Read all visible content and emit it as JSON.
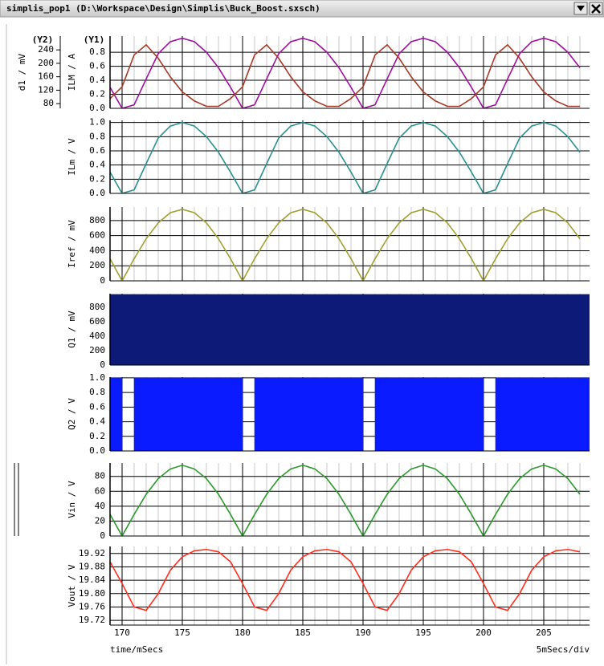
{
  "window": {
    "title": "simplis_pop1 (D:\\Workspace\\Design\\Simplis\\Buck_Boost.sxsch)"
  },
  "chart_data": [
    {
      "type": "line",
      "ylabel": "ILM / A",
      "y_axis_tag": "(Y1)",
      "y2label": "d1 / mV",
      "y2_axis_tag": "(Y2)",
      "x": [
        169,
        170,
        171,
        172,
        173,
        174,
        175,
        176,
        177,
        178,
        179,
        180,
        181,
        182,
        183,
        184,
        185,
        186,
        187,
        188,
        189,
        190,
        191,
        192,
        193,
        194,
        195,
        196,
        197,
        198,
        199,
        200,
        201,
        202,
        203,
        204,
        205,
        206,
        207,
        208
      ],
      "series": [
        {
          "color": "#a010a0",
          "values": [
            0.3,
            0,
            0.05,
            0.42,
            0.78,
            0.95,
            1,
            0.95,
            0.8,
            0.58,
            0.3,
            0,
            0.05,
            0.42,
            0.78,
            0.95,
            1,
            0.95,
            0.8,
            0.58,
            0.3,
            0,
            0.05,
            0.42,
            0.78,
            0.95,
            1,
            0.95,
            0.8,
            0.58,
            0.3,
            0,
            0.05,
            0.42,
            0.78,
            0.95,
            1,
            0.95,
            0.8,
            0.58
          ]
        },
        {
          "color": "#a83a2a",
          "axis": "y2",
          "values": [
            95,
            130,
            225,
            255,
            215,
            160,
            115,
            88,
            72,
            72,
            95,
            130,
            225,
            255,
            215,
            160,
            115,
            88,
            72,
            72,
            95,
            130,
            225,
            255,
            215,
            160,
            115,
            88,
            72,
            72,
            95,
            130,
            225,
            255,
            215,
            160,
            115,
            88,
            72,
            72
          ]
        }
      ],
      "xlim": [
        169,
        208.8
      ],
      "xticks": [
        170,
        175,
        180,
        185,
        190,
        195,
        200,
        205
      ],
      "ylim": [
        0,
        1.03
      ],
      "yticks": [
        {
          "value": 0,
          "label": "0.0"
        },
        0.2,
        0.4,
        0.6,
        0.8
      ],
      "y2lim": [
        66,
        281
      ],
      "y2ticks": [
        80,
        120,
        160,
        200,
        240
      ],
      "grid": true,
      "xtick_labels": false
    },
    {
      "type": "line",
      "ylabel": "ILm / V",
      "color": "#2a9090",
      "x": [
        169,
        170,
        171,
        172,
        173,
        174,
        175,
        176,
        177,
        178,
        179,
        180,
        181,
        182,
        183,
        184,
        185,
        186,
        187,
        188,
        189,
        190,
        191,
        192,
        193,
        194,
        195,
        196,
        197,
        198,
        199,
        200,
        201,
        202,
        203,
        204,
        205,
        206,
        207,
        208
      ],
      "values": [
        0.3,
        0,
        0.05,
        0.42,
        0.78,
        0.95,
        1,
        0.95,
        0.8,
        0.58,
        0.3,
        0,
        0.05,
        0.42,
        0.78,
        0.95,
        1,
        0.95,
        0.8,
        0.58,
        0.3,
        0,
        0.05,
        0.42,
        0.78,
        0.95,
        1,
        0.95,
        0.8,
        0.58,
        0.3,
        0,
        0.05,
        0.42,
        0.78,
        0.95,
        1,
        0.95,
        0.8,
        0.58
      ],
      "xlim": [
        169,
        208.8
      ],
      "xticks": [
        170,
        175,
        180,
        185,
        190,
        195,
        200,
        205
      ],
      "ylim": [
        0,
        1.03
      ],
      "yticks": [
        {
          "value": 0,
          "label": "0.0"
        },
        0.2,
        0.4,
        0.6,
        0.8,
        {
          "value": 1,
          "label": "1.0"
        }
      ],
      "grid": true,
      "xtick_labels": false
    },
    {
      "type": "line",
      "ylabel": "Iref / mV",
      "color": "#a0a030",
      "x": [
        169,
        170,
        171,
        172,
        173,
        174,
        175,
        176,
        177,
        178,
        179,
        180,
        181,
        182,
        183,
        184,
        185,
        186,
        187,
        188,
        189,
        190,
        191,
        192,
        193,
        194,
        195,
        196,
        197,
        198,
        199,
        200,
        201,
        202,
        203,
        204,
        205,
        206,
        207,
        208
      ],
      "values": [
        294,
        0,
        294,
        559,
        769,
        904,
        950,
        904,
        769,
        559,
        294,
        0,
        294,
        559,
        769,
        904,
        950,
        904,
        769,
        559,
        294,
        0,
        294,
        559,
        769,
        904,
        950,
        904,
        769,
        559,
        294,
        0,
        294,
        559,
        769,
        904,
        950,
        904,
        769,
        559
      ],
      "xlim": [
        169,
        208.8
      ],
      "xticks": [
        170,
        175,
        180,
        185,
        190,
        195,
        200,
        205
      ],
      "ylim": [
        0,
        980
      ],
      "yticks": [
        0,
        200,
        400,
        600,
        800
      ],
      "grid": true,
      "xtick_labels": false
    },
    {
      "type": "area",
      "ylabel": "Q1 / mV",
      "color": "#0e1a78",
      "x": [
        169,
        208.8
      ],
      "values": [
        980,
        980
      ],
      "xlim": [
        169,
        208.8
      ],
      "xticks": [
        170,
        175,
        180,
        185,
        190,
        195,
        200,
        205
      ],
      "ylim": [
        0,
        990
      ],
      "yticks": [
        0,
        200,
        400,
        600,
        800
      ],
      "grid": true,
      "xtick_labels": false
    },
    {
      "type": "area",
      "ylabel": "Q2 / V",
      "color": "#0a1cff",
      "x": [
        169,
        170,
        170,
        171,
        171,
        180,
        180,
        181,
        181,
        190,
        190,
        191,
        191,
        200,
        200,
        201,
        201,
        208.8
      ],
      "values": [
        1,
        1,
        0,
        0,
        1,
        1,
        0,
        0,
        1,
        1,
        0,
        0,
        1,
        1,
        0,
        0,
        1,
        1
      ],
      "xlim": [
        169,
        208.8
      ],
      "xticks": [
        170,
        175,
        180,
        185,
        190,
        195,
        200,
        205
      ],
      "ylim": [
        0,
        1.01
      ],
      "yticks": [
        {
          "value": 0,
          "label": "0.0"
        },
        0.2,
        0.4,
        0.6,
        0.8,
        {
          "value": 1,
          "label": "1.0"
        }
      ],
      "grid": true,
      "xtick_labels": false
    },
    {
      "type": "line",
      "ylabel": "Vin / V",
      "color": "#2e9a2e",
      "x": [
        169,
        170,
        171,
        172,
        173,
        174,
        175,
        176,
        177,
        178,
        179,
        180,
        181,
        182,
        183,
        184,
        185,
        186,
        187,
        188,
        189,
        190,
        191,
        192,
        193,
        194,
        195,
        196,
        197,
        198,
        199,
        200,
        201,
        202,
        203,
        204,
        205,
        206,
        207,
        208
      ],
      "values": [
        29,
        0,
        29,
        56,
        77,
        90,
        95,
        90,
        77,
        56,
        29,
        0,
        29,
        56,
        77,
        90,
        95,
        90,
        77,
        56,
        29,
        0,
        29,
        56,
        77,
        90,
        95,
        90,
        77,
        56,
        29,
        0,
        29,
        56,
        77,
        90,
        95,
        90,
        77,
        56
      ],
      "xlim": [
        169,
        208.8
      ],
      "xticks": [
        170,
        175,
        180,
        185,
        190,
        195,
        200,
        205
      ],
      "ylim": [
        0,
        98
      ],
      "yticks": [
        0,
        20,
        40,
        60,
        80
      ],
      "grid": true,
      "xtick_labels": false
    },
    {
      "type": "line",
      "ylabel": "Vout / V",
      "color": "#ff3020",
      "xlabel": "time/mSecs",
      "x_scale_note": "5mSecs/div",
      "x": [
        169,
        170,
        171,
        172,
        173,
        174,
        175,
        176,
        177,
        178,
        179,
        180,
        181,
        182,
        183,
        184,
        185,
        186,
        187,
        188,
        189,
        190,
        191,
        192,
        193,
        194,
        195,
        196,
        197,
        198,
        199,
        200,
        201,
        202,
        203,
        204,
        205,
        206,
        207,
        208
      ],
      "values": [
        19.895,
        19.83,
        19.76,
        19.75,
        19.8,
        19.87,
        19.91,
        19.928,
        19.932,
        19.925,
        19.895,
        19.83,
        19.76,
        19.75,
        19.8,
        19.87,
        19.91,
        19.928,
        19.932,
        19.925,
        19.895,
        19.83,
        19.76,
        19.75,
        19.8,
        19.87,
        19.91,
        19.928,
        19.932,
        19.925,
        19.895,
        19.83,
        19.76,
        19.75,
        19.8,
        19.87,
        19.91,
        19.928,
        19.932,
        19.925
      ],
      "xlim": [
        169,
        208.8
      ],
      "xticks": [
        170,
        175,
        180,
        185,
        190,
        195,
        200,
        205
      ],
      "ylim": [
        19.706,
        19.941
      ],
      "yticks": [
        19.72,
        19.76,
        {
          "value": 19.8,
          "label": "19.80"
        },
        19.84,
        19.88,
        19.92
      ],
      "grid": true,
      "xtick_labels": true
    }
  ]
}
